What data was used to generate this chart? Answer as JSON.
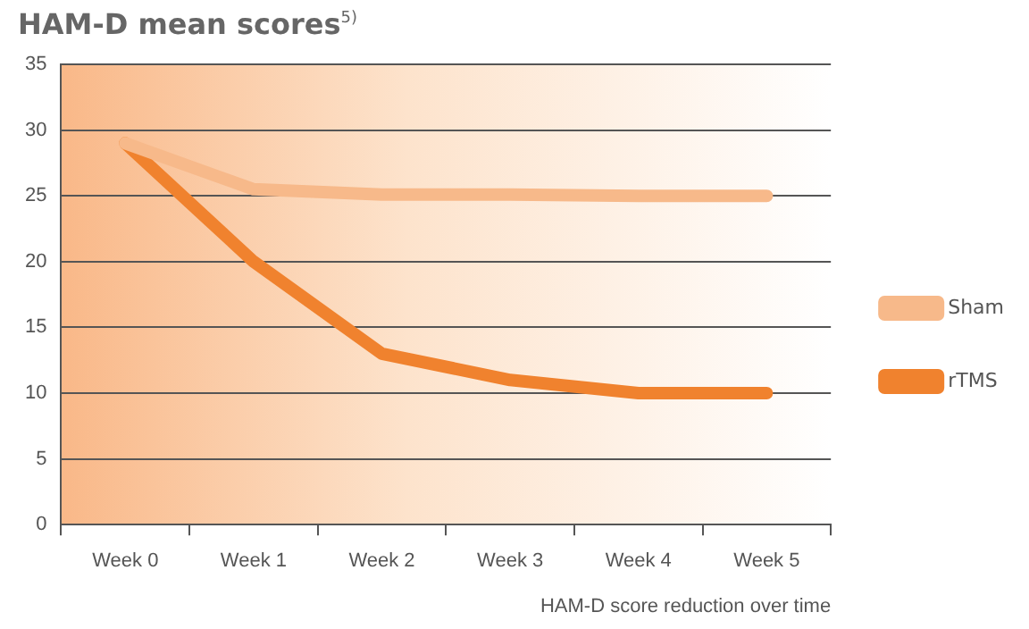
{
  "chart_data": {
    "type": "line",
    "title": "HAM-D mean scores$^{5)}$",
    "xlabel": "HAM-D score reduction over time",
    "categories": [
      "Week 0",
      "Week 1",
      "Week 2",
      "Week 3",
      "Week 4",
      "Week 5"
    ],
    "series": [
      {
        "name": "Sham",
        "color": "#f7b98a",
        "values": [
          29,
          25.5,
          25.1,
          25.1,
          25,
          25
        ]
      },
      {
        "name": "rTMS",
        "color": "#f0822e",
        "values": [
          29,
          20,
          13,
          11,
          10,
          10
        ]
      }
    ],
    "ylim": [
      0,
      35
    ],
    "yticks": [
      0,
      5,
      10,
      15,
      20,
      25,
      30,
      35
    ],
    "grid": "y",
    "legend": "right",
    "marker": "none",
    "line_style": "solid"
  }
}
